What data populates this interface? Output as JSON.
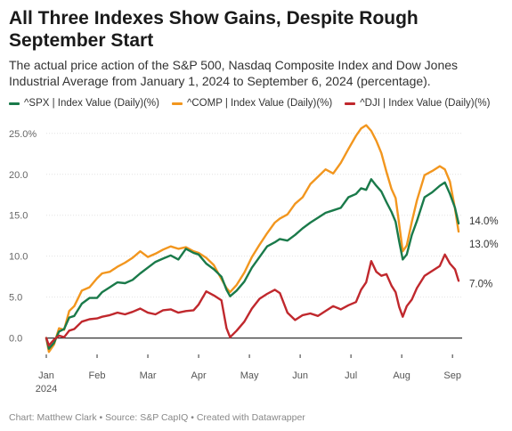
{
  "title": "All Three Indexes Show Gains, Despite Rough September Start",
  "subtitle": "The actual price action of the S&P 500, Nasdaq Composite Index and Dow Jones Industrial Average from January 1, 2024 to September 6, 2024 (percentage).",
  "footer": "Chart: Matthew Clark • Source: S&P CapIQ • Created with Datawrapper",
  "colors": {
    "spx": "#1a7a4a",
    "comp": "#f2961e",
    "dji": "#c0282d"
  },
  "chart_data": {
    "type": "line",
    "x_label_year": "2024",
    "x_ticks": [
      "Jan",
      "Feb",
      "Mar",
      "Apr",
      "May",
      "Jun",
      "Jul",
      "Aug",
      "Sep"
    ],
    "y_ticks": [
      "0.0",
      "5.0",
      "10.0",
      "15.0",
      "20.0",
      "25.0%"
    ],
    "ylim": [
      -2,
      26.5
    ],
    "series": [
      {
        "name": "^SPX | Index Value (Daily)(%)",
        "end_label": "14.0%",
        "points": [
          [
            0.0,
            0.0
          ],
          [
            0.05,
            -1.3
          ],
          [
            0.15,
            -0.6
          ],
          [
            0.25,
            0.8
          ],
          [
            0.35,
            1.1
          ],
          [
            0.45,
            2.5
          ],
          [
            0.55,
            2.7
          ],
          [
            0.7,
            4.2
          ],
          [
            0.85,
            4.9
          ],
          [
            1.0,
            4.9
          ],
          [
            1.1,
            5.6
          ],
          [
            1.25,
            6.2
          ],
          [
            1.4,
            6.8
          ],
          [
            1.55,
            6.7
          ],
          [
            1.7,
            7.1
          ],
          [
            1.85,
            7.9
          ],
          [
            2.0,
            8.6
          ],
          [
            2.15,
            9.3
          ],
          [
            2.3,
            9.7
          ],
          [
            2.45,
            10.1
          ],
          [
            2.6,
            9.6
          ],
          [
            2.75,
            10.9
          ],
          [
            2.9,
            10.4
          ],
          [
            3.0,
            10.2
          ],
          [
            3.15,
            9.1
          ],
          [
            3.3,
            8.4
          ],
          [
            3.45,
            7.5
          ],
          [
            3.55,
            5.9
          ],
          [
            3.62,
            5.1
          ],
          [
            3.75,
            5.8
          ],
          [
            3.9,
            6.9
          ],
          [
            4.05,
            8.6
          ],
          [
            4.2,
            9.9
          ],
          [
            4.35,
            11.2
          ],
          [
            4.5,
            11.7
          ],
          [
            4.6,
            12.1
          ],
          [
            4.75,
            11.9
          ],
          [
            4.9,
            12.6
          ],
          [
            5.05,
            13.4
          ],
          [
            5.2,
            14.1
          ],
          [
            5.35,
            14.7
          ],
          [
            5.5,
            15.3
          ],
          [
            5.65,
            15.6
          ],
          [
            5.8,
            15.9
          ],
          [
            5.95,
            17.2
          ],
          [
            6.1,
            17.6
          ],
          [
            6.2,
            18.3
          ],
          [
            6.3,
            18.1
          ],
          [
            6.4,
            19.4
          ],
          [
            6.5,
            18.6
          ],
          [
            6.6,
            17.9
          ],
          [
            6.7,
            16.6
          ],
          [
            6.8,
            15.4
          ],
          [
            6.88,
            14.2
          ],
          [
            6.95,
            11.8
          ],
          [
            7.02,
            9.6
          ],
          [
            7.1,
            10.2
          ],
          [
            7.2,
            12.6
          ],
          [
            7.3,
            14.3
          ],
          [
            7.45,
            17.2
          ],
          [
            7.6,
            17.8
          ],
          [
            7.75,
            18.6
          ],
          [
            7.85,
            19.0
          ],
          [
            7.95,
            17.6
          ],
          [
            8.05,
            15.9
          ],
          [
            8.12,
            14.0
          ]
        ]
      },
      {
        "name": "^COMP | Index Value (Daily)(%)",
        "end_label": "13.0%",
        "points": [
          [
            0.0,
            0.0
          ],
          [
            0.05,
            -1.7
          ],
          [
            0.15,
            -0.8
          ],
          [
            0.25,
            1.2
          ],
          [
            0.35,
            1.0
          ],
          [
            0.45,
            3.3
          ],
          [
            0.55,
            3.9
          ],
          [
            0.7,
            5.8
          ],
          [
            0.85,
            6.2
          ],
          [
            1.0,
            7.3
          ],
          [
            1.1,
            7.9
          ],
          [
            1.25,
            8.1
          ],
          [
            1.4,
            8.7
          ],
          [
            1.55,
            9.2
          ],
          [
            1.7,
            9.8
          ],
          [
            1.85,
            10.6
          ],
          [
            2.0,
            9.9
          ],
          [
            2.15,
            10.3
          ],
          [
            2.3,
            10.8
          ],
          [
            2.45,
            11.2
          ],
          [
            2.6,
            10.9
          ],
          [
            2.75,
            11.1
          ],
          [
            2.9,
            10.6
          ],
          [
            3.0,
            10.4
          ],
          [
            3.15,
            9.8
          ],
          [
            3.3,
            8.9
          ],
          [
            3.45,
            7.2
          ],
          [
            3.55,
            6.1
          ],
          [
            3.62,
            5.6
          ],
          [
            3.75,
            6.5
          ],
          [
            3.9,
            8.0
          ],
          [
            4.05,
            9.9
          ],
          [
            4.2,
            11.4
          ],
          [
            4.35,
            12.8
          ],
          [
            4.5,
            14.1
          ],
          [
            4.6,
            14.6
          ],
          [
            4.75,
            15.1
          ],
          [
            4.9,
            16.4
          ],
          [
            5.05,
            17.2
          ],
          [
            5.2,
            18.8
          ],
          [
            5.35,
            19.7
          ],
          [
            5.5,
            20.6
          ],
          [
            5.65,
            20.1
          ],
          [
            5.8,
            21.4
          ],
          [
            5.95,
            23.1
          ],
          [
            6.1,
            24.7
          ],
          [
            6.2,
            25.6
          ],
          [
            6.3,
            26.0
          ],
          [
            6.4,
            25.3
          ],
          [
            6.5,
            24.1
          ],
          [
            6.6,
            22.6
          ],
          [
            6.7,
            20.3
          ],
          [
            6.8,
            18.2
          ],
          [
            6.88,
            17.1
          ],
          [
            6.95,
            13.9
          ],
          [
            7.02,
            10.6
          ],
          [
            7.1,
            11.3
          ],
          [
            7.2,
            14.2
          ],
          [
            7.3,
            16.8
          ],
          [
            7.45,
            19.9
          ],
          [
            7.6,
            20.4
          ],
          [
            7.75,
            21.0
          ],
          [
            7.85,
            20.6
          ],
          [
            7.95,
            19.1
          ],
          [
            8.05,
            15.8
          ],
          [
            8.12,
            13.0
          ]
        ]
      },
      {
        "name": "^DJI | Index Value (Daily)(%)",
        "end_label": "7.0%",
        "points": [
          [
            0.0,
            0.0
          ],
          [
            0.05,
            -0.9
          ],
          [
            0.15,
            -0.2
          ],
          [
            0.25,
            0.3
          ],
          [
            0.35,
            0.1
          ],
          [
            0.45,
            0.9
          ],
          [
            0.55,
            1.1
          ],
          [
            0.7,
            2.0
          ],
          [
            0.85,
            2.3
          ],
          [
            1.0,
            2.4
          ],
          [
            1.1,
            2.6
          ],
          [
            1.25,
            2.8
          ],
          [
            1.4,
            3.1
          ],
          [
            1.55,
            2.9
          ],
          [
            1.7,
            3.2
          ],
          [
            1.85,
            3.6
          ],
          [
            2.0,
            3.1
          ],
          [
            2.15,
            2.9
          ],
          [
            2.3,
            3.4
          ],
          [
            2.45,
            3.5
          ],
          [
            2.6,
            3.1
          ],
          [
            2.75,
            3.3
          ],
          [
            2.9,
            3.4
          ],
          [
            3.0,
            4.1
          ],
          [
            3.15,
            5.7
          ],
          [
            3.3,
            5.2
          ],
          [
            3.45,
            4.6
          ],
          [
            3.55,
            1.2
          ],
          [
            3.62,
            0.1
          ],
          [
            3.75,
            0.9
          ],
          [
            3.9,
            2.0
          ],
          [
            4.05,
            3.6
          ],
          [
            4.2,
            4.8
          ],
          [
            4.35,
            5.4
          ],
          [
            4.5,
            5.9
          ],
          [
            4.6,
            5.5
          ],
          [
            4.75,
            3.1
          ],
          [
            4.9,
            2.2
          ],
          [
            5.05,
            2.8
          ],
          [
            5.2,
            3.0
          ],
          [
            5.35,
            2.7
          ],
          [
            5.5,
            3.3
          ],
          [
            5.65,
            3.9
          ],
          [
            5.8,
            3.5
          ],
          [
            5.95,
            4.0
          ],
          [
            6.1,
            4.4
          ],
          [
            6.2,
            5.9
          ],
          [
            6.3,
            6.8
          ],
          [
            6.4,
            9.4
          ],
          [
            6.5,
            8.1
          ],
          [
            6.6,
            7.6
          ],
          [
            6.7,
            7.8
          ],
          [
            6.8,
            6.4
          ],
          [
            6.88,
            5.6
          ],
          [
            6.95,
            3.8
          ],
          [
            7.02,
            2.6
          ],
          [
            7.1,
            3.9
          ],
          [
            7.2,
            4.7
          ],
          [
            7.3,
            6.1
          ],
          [
            7.45,
            7.6
          ],
          [
            7.6,
            8.2
          ],
          [
            7.75,
            8.8
          ],
          [
            7.85,
            10.2
          ],
          [
            7.95,
            9.1
          ],
          [
            8.05,
            8.4
          ],
          [
            8.12,
            7.0
          ]
        ]
      }
    ]
  }
}
